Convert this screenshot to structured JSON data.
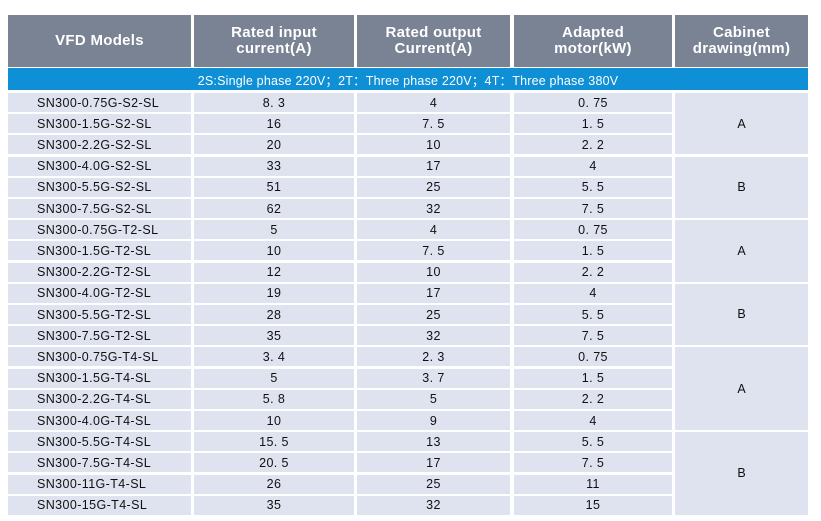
{
  "table": {
    "headers": [
      "VFD Models",
      "Rated input\ncurrent(A)",
      "Rated output\nCurrent(A)",
      "Adapted\nmotor(kW)",
      "Cabinet\ndrawing(mm)"
    ],
    "banner": "2S:Single phase 220V；2T：Three phase 220V；4T：Three phase 380V",
    "rows": [
      [
        "SN300-0.75G-S2-SL",
        "8. 3",
        "4",
        "0. 75"
      ],
      [
        "SN300-1.5G-S2-SL",
        "16",
        "7. 5",
        "1. 5"
      ],
      [
        "SN300-2.2G-S2-SL",
        "20",
        "10",
        "2. 2"
      ],
      [
        "SN300-4.0G-S2-SL",
        "33",
        "17",
        "4"
      ],
      [
        "SN300-5.5G-S2-SL",
        "51",
        "25",
        "5. 5"
      ],
      [
        "SN300-7.5G-S2-SL",
        "62",
        "32",
        "7. 5"
      ],
      [
        "SN300-0.75G-T2-SL",
        "5",
        "4",
        "0. 75"
      ],
      [
        "SN300-1.5G-T2-SL",
        "10",
        "7. 5",
        "1. 5"
      ],
      [
        "SN300-2.2G-T2-SL",
        "12",
        "10",
        "2. 2"
      ],
      [
        "SN300-4.0G-T2-SL",
        "19",
        "17",
        "4"
      ],
      [
        "SN300-5.5G-T2-SL",
        "28",
        "25",
        "5. 5"
      ],
      [
        "SN300-7.5G-T2-SL",
        "35",
        "32",
        "7. 5"
      ],
      [
        "SN300-0.75G-T4-SL",
        "3. 4",
        "2. 3",
        "0. 75"
      ],
      [
        "SN300-1.5G-T4-SL",
        "5",
        "3. 7",
        "1. 5"
      ],
      [
        "SN300-2.2G-T4-SL",
        "5. 8",
        "5",
        "2. 2"
      ],
      [
        "SN300-4.0G-T4-SL",
        "10",
        "9",
        "4"
      ],
      [
        "SN300-5.5G-T4-SL",
        "15. 5",
        "13",
        "5. 5"
      ],
      [
        "SN300-7.5G-T4-SL",
        "20. 5",
        "17",
        "7. 5"
      ],
      [
        "SN300-11G-T4-SL",
        "26",
        "25",
        "11"
      ],
      [
        "SN300-15G-T4-SL",
        "35",
        "32",
        "15"
      ]
    ],
    "cabinet_groups": [
      {
        "label": "A",
        "row_count": 3
      },
      {
        "label": "B",
        "row_count": 3
      },
      {
        "label": "A",
        "row_count": 3
      },
      {
        "label": "B",
        "row_count": 3
      },
      {
        "label": "A",
        "row_count": 4
      },
      {
        "label": "B",
        "row_count": 4
      }
    ]
  }
}
